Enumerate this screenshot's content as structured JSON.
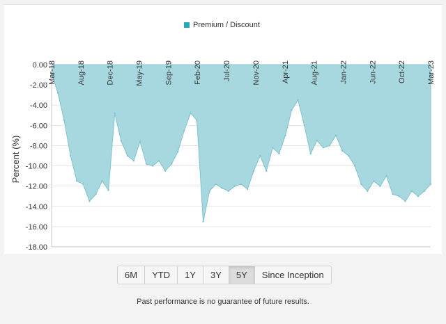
{
  "colors": {
    "fill": "#a8d8df",
    "stroke": "#7fc3cd",
    "legend_swatch": "#2aa8b6",
    "grid": "#e6e6e6"
  },
  "chart_data": {
    "type": "area",
    "legend": [
      "Premium / Discount"
    ],
    "ylabel": "Percent (%)",
    "xlabel": "",
    "ylim": [
      -18,
      0
    ],
    "yticks": [
      "0.00",
      "-2.00",
      "-4.00",
      "-6.00",
      "-8.00",
      "-10.00",
      "-12.00",
      "-14.00",
      "-16.00",
      "-18.00"
    ],
    "xticks": [
      "Mar-18",
      "Aug-18",
      "Dec-18",
      "May-19",
      "Sep-19",
      "Feb-20",
      "Jul-20",
      "Nov-20",
      "Apr-21",
      "Aug-21",
      "Jan-22",
      "Jun-22",
      "Oct-22",
      "Mar-23"
    ],
    "grid": true,
    "series": [
      {
        "name": "Premium / Discount",
        "x": [
          "2018-03",
          "2018-04",
          "2018-05",
          "2018-06",
          "2018-07",
          "2018-08",
          "2018-09",
          "2018-10",
          "2018-11",
          "2018-12",
          "2019-01",
          "2019-02",
          "2019-03",
          "2019-04",
          "2019-05",
          "2019-06",
          "2019-07",
          "2019-08",
          "2019-09",
          "2019-10",
          "2019-11",
          "2019-12",
          "2020-01",
          "2020-02",
          "2020-03",
          "2020-04",
          "2020-05",
          "2020-06",
          "2020-07",
          "2020-08",
          "2020-09",
          "2020-10",
          "2020-11",
          "2020-12",
          "2021-01",
          "2021-02",
          "2021-03",
          "2021-04",
          "2021-05",
          "2021-06",
          "2021-07",
          "2021-08",
          "2021-09",
          "2021-10",
          "2021-11",
          "2021-12",
          "2022-01",
          "2022-02",
          "2022-03",
          "2022-04",
          "2022-05",
          "2022-06",
          "2022-07",
          "2022-08",
          "2022-09",
          "2022-10",
          "2022-11",
          "2022-12",
          "2023-01",
          "2023-02",
          "2023-03"
        ],
        "values": [
          -0.8,
          -2.8,
          -5.5,
          -9.0,
          -11.5,
          -11.8,
          -13.5,
          -12.8,
          -11.5,
          -12.4,
          -4.8,
          -7.5,
          -9.0,
          -9.5,
          -7.6,
          -9.8,
          -10.0,
          -9.5,
          -10.5,
          -9.8,
          -8.6,
          -6.5,
          -4.8,
          -5.5,
          -15.5,
          -12.5,
          -11.8,
          -12.2,
          -12.5,
          -12.0,
          -11.8,
          -12.3,
          -10.5,
          -9.0,
          -10.5,
          -8.2,
          -8.8,
          -7.0,
          -4.5,
          -3.5,
          -6.0,
          -8.8,
          -7.5,
          -8.2,
          -8.0,
          -7.0,
          -8.5,
          -9.0,
          -10.0,
          -11.8,
          -12.5,
          -11.5,
          -12.0,
          -11.0,
          -12.8,
          -13.0,
          -13.5,
          -12.5,
          -13.0,
          -12.5,
          -11.8
        ]
      }
    ]
  },
  "range_buttons": [
    "6M",
    "YTD",
    "1Y",
    "3Y",
    "5Y",
    "Since Inception"
  ],
  "active_range": "5Y",
  "disclaimer": "Past performance is no guarantee of future results."
}
